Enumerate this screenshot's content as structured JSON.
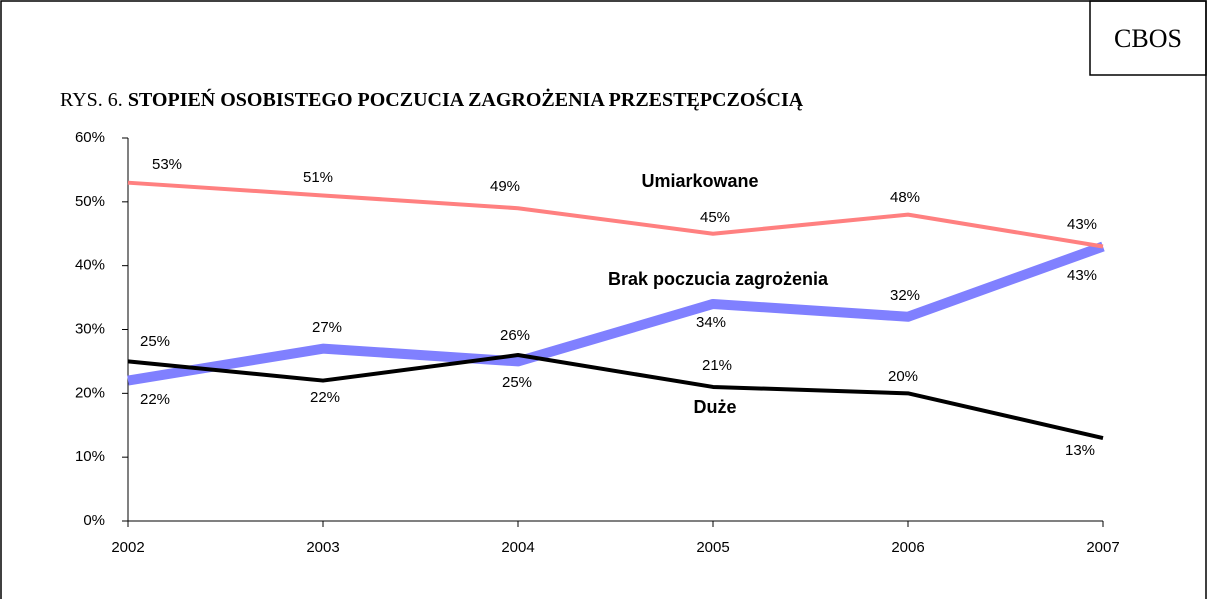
{
  "chart_data": {
    "type": "line",
    "badge": "CBOS",
    "title_prefix": "RYS. 6.",
    "title": "STOPIEŃ OSOBISTEGO POCZUCIA ZAGROŻENIA PRZESTĘPCZOŚCIĄ",
    "x": [
      2002,
      2003,
      2004,
      2005,
      2006,
      2007
    ],
    "xlim": [
      2002,
      2007
    ],
    "xticks": [
      2002,
      2003,
      2004,
      2005,
      2006,
      2007
    ],
    "ylim": [
      0,
      60
    ],
    "yticks": [
      {
        "value": 0,
        "label": "0%"
      },
      {
        "value": 10,
        "label": "10%"
      },
      {
        "value": 20,
        "label": "20%"
      },
      {
        "value": 30,
        "label": "30%"
      },
      {
        "value": 40,
        "label": "40%"
      },
      {
        "value": 50,
        "label": "50%"
      },
      {
        "value": 60,
        "label": "60%"
      }
    ],
    "series": [
      {
        "name": "Brak poczucia zagrożenia",
        "color": "#8080ff",
        "values": [
          22,
          27,
          25,
          34,
          32,
          43
        ],
        "value_labels": [
          "22%",
          "27%",
          "25%",
          "34%",
          "32%",
          "43%"
        ]
      },
      {
        "name": "Umiarkowane",
        "color": "#ff8080",
        "values": [
          53,
          51,
          49,
          45,
          48,
          43
        ],
        "value_labels": [
          "53%",
          "51%",
          "49%",
          "45%",
          "48%",
          "43%"
        ]
      },
      {
        "name": "Duże",
        "color": "#000000",
        "values": [
          25,
          22,
          26,
          21,
          20,
          13
        ],
        "value_labels": [
          "25%",
          "22%",
          "26%",
          "21%",
          "20%",
          "13%"
        ]
      }
    ]
  }
}
